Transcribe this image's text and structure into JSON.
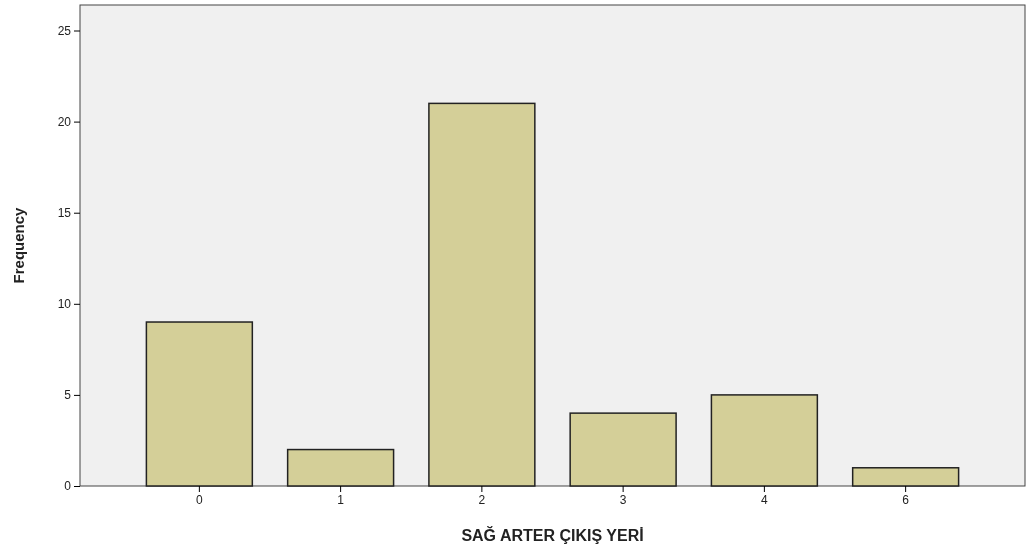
{
  "chart_data": {
    "type": "bar",
    "xlabel": "SAĞ ARTER ÇIKIŞ YERİ",
    "ylabel": "Frequency",
    "categories": [
      "0",
      "1",
      "2",
      "3",
      "4",
      "6"
    ],
    "values": [
      9,
      2,
      21,
      4,
      5,
      1
    ],
    "color": "#d4cf98",
    "ylim": [
      0,
      26.4
    ],
    "yticks": [
      0,
      5,
      10,
      15,
      20,
      25
    ],
    "grid": false
  }
}
